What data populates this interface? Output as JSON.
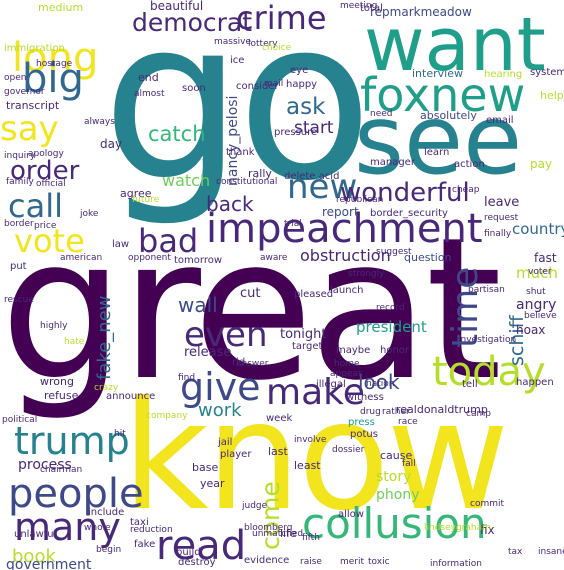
{
  "palette": {
    "yellow": "#f2e51e",
    "lime": "#b5de2b",
    "green": "#6ece58",
    "emerald": "#35b779",
    "teal": "#1f9e89",
    "cyan": "#26828e",
    "blue": "#31688e",
    "indigo": "#3e4989",
    "purple": "#482878",
    "dark": "#440154"
  },
  "words": [
    {
      "text": "great",
      "color": "dark"
    },
    {
      "text": "go",
      "color": "cyan"
    },
    {
      "text": "know",
      "color": "yellow"
    },
    {
      "text": "see",
      "color": "cyan"
    },
    {
      "text": "want",
      "color": "teal"
    },
    {
      "text": "foxnew",
      "color": "teal"
    },
    {
      "text": "impeachment",
      "color": "purple"
    },
    {
      "text": "collusion",
      "color": "emerald"
    },
    {
      "text": "crime",
      "color": "purple"
    },
    {
      "text": "long",
      "color": "yellow"
    },
    {
      "text": "big",
      "color": "blue"
    },
    {
      "text": "say",
      "color": "yellow"
    },
    {
      "text": "trump",
      "color": "cyan"
    },
    {
      "text": "people",
      "color": "indigo"
    },
    {
      "text": "many",
      "color": "purple"
    },
    {
      "text": "read",
      "color": "purple"
    },
    {
      "text": "today",
      "color": "lime"
    },
    {
      "text": "give",
      "color": "indigo"
    },
    {
      "text": "make",
      "color": "purple"
    },
    {
      "text": "even",
      "color": "purple"
    },
    {
      "text": "time",
      "color": "indigo"
    },
    {
      "text": "vote",
      "color": "yellow"
    },
    {
      "text": "call",
      "color": "blue"
    },
    {
      "text": "new",
      "color": "blue"
    },
    {
      "text": "bad",
      "color": "purple"
    },
    {
      "text": "wonderful",
      "color": "purple"
    },
    {
      "text": "democrat",
      "color": "purple"
    },
    {
      "text": "order",
      "color": "purple"
    },
    {
      "text": "ask",
      "color": "blue"
    },
    {
      "text": "catch",
      "color": "emerald"
    },
    {
      "text": "back",
      "color": "purple"
    },
    {
      "text": "come",
      "color": "lime"
    },
    {
      "text": "fake_new",
      "color": "blue"
    },
    {
      "text": "schiff",
      "color": "blue"
    },
    {
      "text": "wall",
      "color": "indigo"
    },
    {
      "text": "look",
      "color": "indigo"
    },
    {
      "text": "work",
      "color": "cyan"
    },
    {
      "text": "president",
      "color": "teal"
    },
    {
      "text": "obstruction",
      "color": "purple"
    },
    {
      "text": "start",
      "color": "purple"
    },
    {
      "text": "watch",
      "color": "green"
    },
    {
      "text": "nancy_pelosi",
      "color": "indigo"
    },
    {
      "text": "country",
      "color": "blue"
    },
    {
      "text": "much",
      "color": "lime"
    },
    {
      "text": "fast",
      "color": "purple"
    },
    {
      "text": "angry",
      "color": "purple"
    },
    {
      "text": "book",
      "color": "lime"
    },
    {
      "text": "government",
      "color": "indigo"
    },
    {
      "text": "process",
      "color": "purple"
    },
    {
      "text": "story",
      "color": "lime"
    },
    {
      "text": "phony",
      "color": "green"
    },
    {
      "text": "tonight",
      "color": "purple"
    },
    {
      "text": "release",
      "color": "purple"
    },
    {
      "text": "cut",
      "color": "purple"
    },
    {
      "text": "report",
      "color": "indigo"
    },
    {
      "text": "leave",
      "color": "purple"
    },
    {
      "text": "hoax",
      "color": "purple"
    },
    {
      "text": "question",
      "color": "indigo"
    },
    {
      "text": "beautiful",
      "color": "purple"
    },
    {
      "text": "repmarkmeadow",
      "color": "indigo"
    },
    {
      "text": "medium",
      "color": "lime"
    },
    {
      "text": "immigration",
      "color": "lime"
    },
    {
      "text": "transcript",
      "color": "purple"
    },
    {
      "text": "interview",
      "color": "blue"
    },
    {
      "text": "absolutely",
      "color": "indigo"
    },
    {
      "text": "happy",
      "color": "purple"
    },
    {
      "text": "end",
      "color": "purple"
    },
    {
      "text": "soon",
      "color": "purple"
    },
    {
      "text": "day",
      "color": "purple"
    },
    {
      "text": "agree",
      "color": "purple"
    },
    {
      "text": "rally",
      "color": "purple"
    },
    {
      "text": "delete acid",
      "color": "purple"
    },
    {
      "text": "tomorrow",
      "color": "purple"
    },
    {
      "text": "law",
      "color": "purple"
    },
    {
      "text": "put",
      "color": "purple"
    },
    {
      "text": "wrong",
      "color": "purple"
    },
    {
      "text": "refuse",
      "color": "purple"
    },
    {
      "text": "announce",
      "color": "purple"
    },
    {
      "text": "witness",
      "color": "purple"
    },
    {
      "text": "realdonaldtrump",
      "color": "purple"
    },
    {
      "text": "year",
      "color": "purple"
    },
    {
      "text": "base",
      "color": "purple"
    },
    {
      "text": "last",
      "color": "purple"
    },
    {
      "text": "least",
      "color": "purple"
    },
    {
      "text": "cause",
      "color": "purple"
    },
    {
      "text": "fix",
      "color": "purple"
    },
    {
      "text": "life",
      "color": "purple"
    },
    {
      "text": "taxi",
      "color": "purple"
    },
    {
      "text": "fake",
      "color": "purple"
    },
    {
      "text": "destroy",
      "color": "purple"
    },
    {
      "text": "build",
      "color": "purple"
    },
    {
      "text": "include",
      "color": "purple"
    },
    {
      "text": "unlawful",
      "color": "purple"
    },
    {
      "text": "allow",
      "color": "purple"
    },
    {
      "text": "evidence",
      "color": "purple"
    },
    {
      "text": "total",
      "color": "purple"
    },
    {
      "text": "hearing",
      "color": "lime"
    },
    {
      "text": "email",
      "color": "purple"
    },
    {
      "text": "learn",
      "color": "purple"
    },
    {
      "text": "action",
      "color": "purple"
    },
    {
      "text": "manager",
      "color": "purple"
    },
    {
      "text": "border_security",
      "color": "purple"
    },
    {
      "text": "launch",
      "color": "purple"
    },
    {
      "text": "pleased",
      "color": "purple"
    },
    {
      "text": "honor",
      "color": "purple"
    },
    {
      "text": "maybe",
      "color": "purple"
    },
    {
      "text": "illegal",
      "color": "purple"
    },
    {
      "text": "press",
      "color": "teal"
    },
    {
      "text": "jail",
      "color": "purple"
    },
    {
      "text": "player",
      "color": "purple"
    },
    {
      "text": "potus",
      "color": "purple"
    },
    {
      "text": "week",
      "color": "purple"
    },
    {
      "text": "tell",
      "color": "purple"
    },
    {
      "text": "happen",
      "color": "purple"
    },
    {
      "text": "nation",
      "color": "purple"
    },
    {
      "text": "rid",
      "color": "purple"
    },
    {
      "text": "target",
      "color": "purple"
    },
    {
      "text": "pay",
      "color": "lime"
    },
    {
      "text": "help",
      "color": "lime"
    },
    {
      "text": "system",
      "color": "purple"
    },
    {
      "text": "need",
      "color": "purple"
    },
    {
      "text": "thank",
      "color": "purple"
    },
    {
      "text": "pressure",
      "color": "purple"
    },
    {
      "text": "consider",
      "color": "purple"
    },
    {
      "text": "mail",
      "color": "purple"
    },
    {
      "text": "eye",
      "color": "purple"
    },
    {
      "text": "ice",
      "color": "purple"
    },
    {
      "text": "lottery",
      "color": "purple"
    },
    {
      "text": "massive",
      "color": "purple"
    },
    {
      "text": "meeting",
      "color": "purple"
    },
    {
      "text": "hostage",
      "color": "purple"
    },
    {
      "text": "open",
      "color": "purple"
    },
    {
      "text": "governor",
      "color": "purple"
    },
    {
      "text": "almost",
      "color": "purple"
    },
    {
      "text": "always",
      "color": "purple"
    },
    {
      "text": "apology",
      "color": "purple"
    },
    {
      "text": "inquiry",
      "color": "purple"
    },
    {
      "text": "family",
      "color": "purple"
    },
    {
      "text": "official",
      "color": "purple"
    },
    {
      "text": "joke",
      "color": "purple"
    },
    {
      "text": "border",
      "color": "purple"
    },
    {
      "text": "price",
      "color": "purple"
    },
    {
      "text": "constitutional",
      "color": "purple"
    },
    {
      "text": "republican",
      "color": "purple"
    },
    {
      "text": "future",
      "color": "lime"
    },
    {
      "text": "finally",
      "color": "purple"
    },
    {
      "text": "request",
      "color": "purple"
    },
    {
      "text": "strongly",
      "color": "purple"
    },
    {
      "text": "suggest",
      "color": "purple"
    },
    {
      "text": "record",
      "color": "purple"
    },
    {
      "text": "partisan",
      "color": "purple"
    },
    {
      "text": "shut",
      "color": "purple"
    },
    {
      "text": "investigation",
      "color": "purple"
    },
    {
      "text": "believe",
      "color": "purple"
    },
    {
      "text": "highly",
      "color": "purple"
    },
    {
      "text": "rescue",
      "color": "purple"
    },
    {
      "text": "hate",
      "color": "lime"
    },
    {
      "text": "political",
      "color": "purple"
    },
    {
      "text": "chairman",
      "color": "purple"
    },
    {
      "text": "answer",
      "color": "purple"
    },
    {
      "text": "find",
      "color": "purple"
    },
    {
      "text": "company",
      "color": "lime"
    },
    {
      "text": "home",
      "color": "purple"
    },
    {
      "text": "voter",
      "color": "purple"
    },
    {
      "text": "drug",
      "color": "purple"
    },
    {
      "text": "rather",
      "color": "purple"
    },
    {
      "text": "race",
      "color": "purple"
    },
    {
      "text": "dossier",
      "color": "purple"
    },
    {
      "text": "involve",
      "color": "purple"
    },
    {
      "text": "fall",
      "color": "purple"
    },
    {
      "text": "camp",
      "color": "purple"
    },
    {
      "text": "commit",
      "color": "purple"
    },
    {
      "text": "whole",
      "color": "purple"
    },
    {
      "text": "reduction",
      "color": "purple"
    },
    {
      "text": "unmatched",
      "color": "purple"
    },
    {
      "text": "begin",
      "color": "purple"
    },
    {
      "text": "merit",
      "color": "purple"
    },
    {
      "text": "insane",
      "color": "purple"
    },
    {
      "text": "raise",
      "color": "purple"
    },
    {
      "text": "information",
      "color": "purple"
    },
    {
      "text": "crazy",
      "color": "lime"
    },
    {
      "text": "american",
      "color": "purple"
    },
    {
      "text": "opponent",
      "color": "purple"
    },
    {
      "text": "trial",
      "color": "purple"
    },
    {
      "text": "aware",
      "color": "purple"
    },
    {
      "text": "choice",
      "color": "lime"
    },
    {
      "text": "cheap",
      "color": "purple"
    },
    {
      "text": "appear",
      "color": "purple"
    },
    {
      "text": "bloomberg",
      "color": "purple"
    },
    {
      "text": "fifth",
      "color": "purple"
    },
    {
      "text": "hit",
      "color": "purple"
    },
    {
      "text": "judge",
      "color": "purple"
    },
    {
      "text": "toxic",
      "color": "purple"
    },
    {
      "text": "lindseygraham",
      "color": "lime"
    },
    {
      "text": "tax",
      "color": "purple"
    }
  ]
}
